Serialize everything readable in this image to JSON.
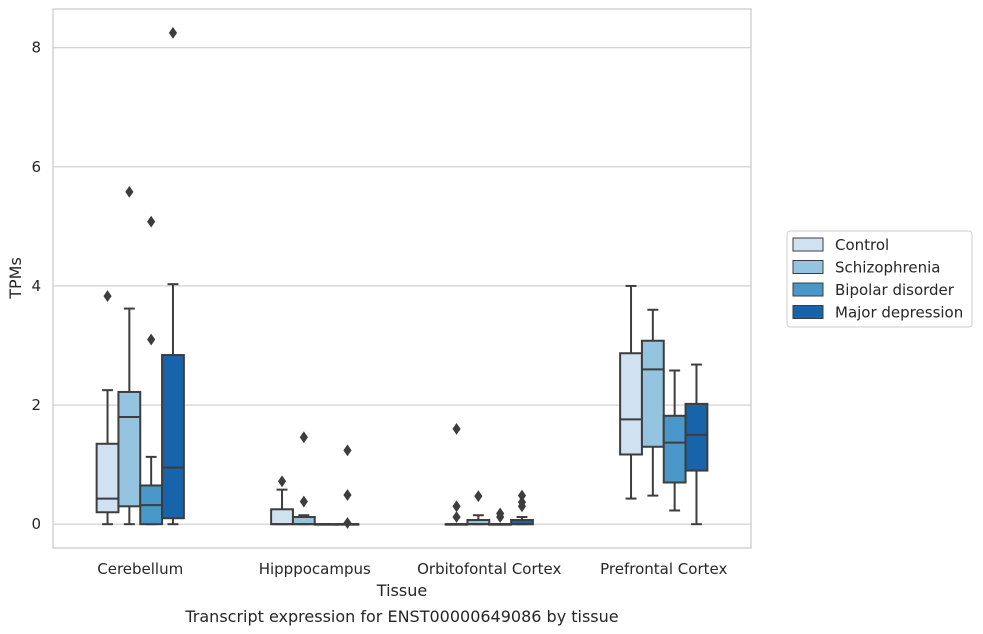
{
  "chart_data": {
    "type": "box",
    "caption": "Transcript expression for ENST00000649086 by tissue",
    "xlabel": "Tissue",
    "ylabel": "TPMs",
    "ylim": [
      -0.4,
      8.65
    ],
    "yticks": [
      0,
      2,
      4,
      6,
      8
    ],
    "grid": true,
    "legend_position": "right",
    "categories": [
      "Cerebellum",
      "Hipppocampus",
      "Orbitofontal Cortex",
      "Prefrontal Cortex"
    ],
    "series": [
      {
        "name": "Control",
        "color": "#d0e1f2",
        "boxes": [
          {
            "whislo": 0.0,
            "q1": 0.2,
            "med": 0.43,
            "q3": 1.35,
            "whishi": 2.25,
            "fliers": [
              3.83
            ]
          },
          {
            "whislo": 0.0,
            "q1": 0.0,
            "med": 0.0,
            "q3": 0.25,
            "whishi": 0.58,
            "fliers": [
              0.72
            ]
          },
          {
            "whislo": 0.0,
            "q1": 0.0,
            "med": 0.0,
            "q3": 0.0,
            "whishi": 0.0,
            "fliers": [
              0.12,
              0.3,
              1.6
            ]
          },
          {
            "whislo": 0.43,
            "q1": 1.17,
            "med": 1.76,
            "q3": 2.87,
            "whishi": 4.0,
            "fliers": []
          }
        ]
      },
      {
        "name": "Schizophrenia",
        "color": "#94c4df",
        "boxes": [
          {
            "whislo": 0.0,
            "q1": 0.3,
            "med": 1.8,
            "q3": 2.22,
            "whishi": 3.62,
            "fliers": [
              5.58
            ]
          },
          {
            "whislo": 0.0,
            "q1": 0.0,
            "med": 0.0,
            "q3": 0.12,
            "whishi": 0.15,
            "fliers": [
              0.38,
              1.46
            ]
          },
          {
            "whislo": 0.0,
            "q1": 0.0,
            "med": 0.0,
            "q3": 0.07,
            "whishi": 0.15,
            "fliers": [
              0.47
            ]
          },
          {
            "whislo": 0.48,
            "q1": 1.3,
            "med": 2.6,
            "q3": 3.08,
            "whishi": 3.6,
            "fliers": []
          }
        ]
      },
      {
        "name": "Bipolar disorder",
        "color": "#4a98c9",
        "boxes": [
          {
            "whislo": 0.0,
            "q1": 0.0,
            "med": 0.32,
            "q3": 0.65,
            "whishi": 1.13,
            "fliers": [
              3.1,
              5.08
            ]
          },
          {
            "whislo": 0.0,
            "q1": 0.0,
            "med": 0.0,
            "q3": 0.0,
            "whishi": 0.0,
            "fliers": []
          },
          {
            "whislo": 0.0,
            "q1": 0.0,
            "med": 0.0,
            "q3": 0.0,
            "whishi": 0.0,
            "fliers": [
              0.12,
              0.18
            ]
          },
          {
            "whislo": 0.23,
            "q1": 0.7,
            "med": 1.37,
            "q3": 1.82,
            "whishi": 2.58,
            "fliers": []
          }
        ]
      },
      {
        "name": "Major depression",
        "color": "#1764ab",
        "boxes": [
          {
            "whislo": 0.0,
            "q1": 0.1,
            "med": 0.95,
            "q3": 2.84,
            "whishi": 4.03,
            "fliers": [
              8.25
            ]
          },
          {
            "whislo": 0.0,
            "q1": 0.0,
            "med": 0.0,
            "q3": 0.0,
            "whishi": 0.0,
            "fliers": [
              0.02,
              0.49,
              1.24
            ]
          },
          {
            "whislo": 0.0,
            "q1": 0.0,
            "med": 0.0,
            "q3": 0.07,
            "whishi": 0.12,
            "fliers": [
              0.3,
              0.37,
              0.48
            ]
          },
          {
            "whislo": 0.0,
            "q1": 0.9,
            "med": 1.5,
            "q3": 2.02,
            "whishi": 2.68,
            "fliers": []
          }
        ]
      }
    ]
  }
}
